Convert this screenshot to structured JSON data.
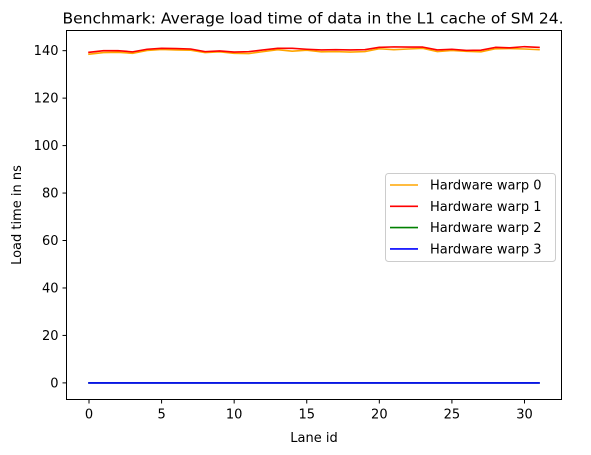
{
  "chart_data": {
    "type": "line",
    "title": "Benchmark: Average load time of data in the L1 cache of SM 24.",
    "xlabel": "Lane id",
    "ylabel": "Load time in ns",
    "xlim": [
      -1.55,
      32.55
    ],
    "ylim": [
      -7,
      148.5
    ],
    "xticks": [
      0,
      5,
      10,
      15,
      20,
      25,
      30
    ],
    "yticks": [
      0,
      20,
      40,
      60,
      80,
      100,
      120,
      140
    ],
    "x": [
      0,
      1,
      2,
      3,
      4,
      5,
      6,
      7,
      8,
      9,
      10,
      11,
      12,
      13,
      14,
      15,
      16,
      17,
      18,
      19,
      20,
      21,
      22,
      23,
      24,
      25,
      26,
      27,
      28,
      29,
      30,
      31
    ],
    "legend_position": "center-right",
    "series": [
      {
        "name": "Hardware warp 0",
        "color": "#ffa500",
        "values": [
          138.5,
          139.2,
          139.3,
          138.9,
          140.1,
          140.5,
          140.3,
          140.2,
          139.2,
          139.5,
          138.9,
          138.8,
          139.6,
          140.4,
          139.8,
          140.2,
          139.5,
          139.6,
          139.4,
          139.6,
          140.8,
          140.4,
          140.7,
          141.0,
          139.6,
          140.1,
          139.7,
          139.5,
          140.8,
          140.9,
          140.7,
          140.4
        ]
      },
      {
        "name": "Hardware warp 1",
        "color": "#ff0000",
        "values": [
          139.3,
          140.0,
          140.0,
          139.5,
          140.6,
          141.0,
          140.9,
          140.7,
          139.6,
          139.9,
          139.4,
          139.6,
          140.3,
          141.0,
          141.0,
          140.6,
          140.3,
          140.4,
          140.3,
          140.4,
          141.4,
          141.6,
          141.5,
          141.5,
          140.3,
          140.6,
          140.1,
          140.2,
          141.4,
          141.2,
          141.7,
          141.4
        ]
      },
      {
        "name": "Hardware warp 2",
        "color": "#008000",
        "values": [
          0,
          0,
          0,
          0,
          0,
          0,
          0,
          0,
          0,
          0,
          0,
          0,
          0,
          0,
          0,
          0,
          0,
          0,
          0,
          0,
          0,
          0,
          0,
          0,
          0,
          0,
          0,
          0,
          0,
          0,
          0,
          0
        ]
      },
      {
        "name": "Hardware warp 3",
        "color": "#0000ff",
        "values": [
          0,
          0,
          0,
          0,
          0,
          0,
          0,
          0,
          0,
          0,
          0,
          0,
          0,
          0,
          0,
          0,
          0,
          0,
          0,
          0,
          0,
          0,
          0,
          0,
          0,
          0,
          0,
          0,
          0,
          0,
          0,
          0
        ]
      }
    ]
  }
}
